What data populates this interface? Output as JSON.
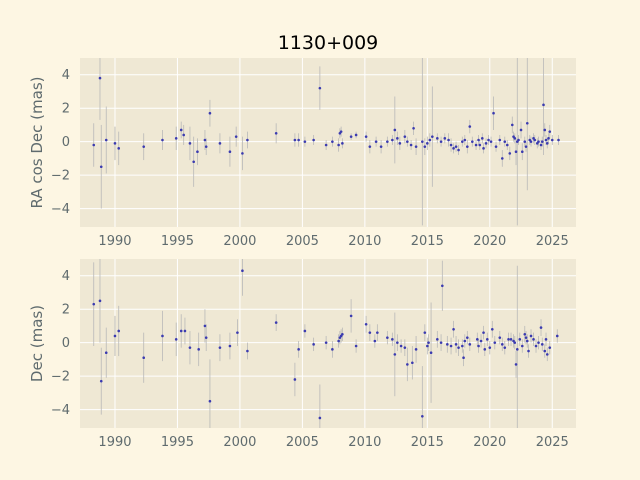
{
  "chart_data": {
    "title": "1130+009",
    "type": "scatter",
    "colors": {
      "background": "#fdf6e3",
      "panel": "#efe8d4",
      "grid": "#ffffff",
      "marker": "#3b3bb0",
      "errorbar": "#b8b8b8",
      "tick_text": "#5f6b6e"
    },
    "grid": true,
    "xlim": [
      1987.2,
      2026.9
    ],
    "xticks": [
      1990,
      1995,
      2000,
      2005,
      2010,
      2015,
      2020,
      2025
    ],
    "panels": [
      {
        "ylabel": "RA cos Dec (mas)",
        "ylim": [
          -5.1,
          5.0
        ],
        "yticks": [
          -4,
          -2,
          0,
          2,
          4
        ],
        "points": [
          [
            1988.3,
            -0.2,
            1.3
          ],
          [
            1988.8,
            3.8,
            2.5
          ],
          [
            1988.9,
            -1.5,
            2.5
          ],
          [
            1989.3,
            0.1,
            2.0
          ],
          [
            1990.0,
            -0.1,
            1.0
          ],
          [
            1990.3,
            -0.4,
            1.0
          ],
          [
            1992.3,
            -0.3,
            0.8
          ],
          [
            1993.8,
            0.1,
            0.6
          ],
          [
            1994.9,
            0.2,
            0.7
          ],
          [
            1995.3,
            0.7,
            0.5
          ],
          [
            1995.5,
            0.4,
            0.6
          ],
          [
            1996.0,
            -0.1,
            1.0
          ],
          [
            1996.3,
            -1.2,
            1.5
          ],
          [
            1996.6,
            -0.6,
            0.8
          ],
          [
            1997.2,
            0.1,
            0.6
          ],
          [
            1997.3,
            -0.3,
            0.5
          ],
          [
            1997.6,
            1.7,
            0.8
          ],
          [
            1998.4,
            -0.1,
            0.6
          ],
          [
            1999.2,
            -0.6,
            0.9
          ],
          [
            1999.7,
            0.3,
            0.6
          ],
          [
            2000.2,
            -0.7,
            1.0
          ],
          [
            2000.6,
            0.1,
            0.5
          ],
          [
            2002.9,
            0.5,
            0.6
          ],
          [
            2004.4,
            0.1,
            0.4
          ],
          [
            2004.7,
            0.1,
            0.4
          ],
          [
            2005.2,
            0.0,
            0.3
          ],
          [
            2005.9,
            0.1,
            0.3
          ],
          [
            2006.4,
            3.2,
            1.3
          ],
          [
            2006.9,
            -0.2,
            0.3
          ],
          [
            2007.4,
            0.0,
            0.3
          ],
          [
            2007.9,
            -0.2,
            0.4
          ],
          [
            2008.0,
            0.5,
            0.3
          ],
          [
            2008.1,
            0.6,
            0.3
          ],
          [
            2008.2,
            -0.1,
            0.3
          ],
          [
            2008.9,
            0.3,
            0.2
          ],
          [
            2009.3,
            0.4,
            0.2
          ],
          [
            2010.1,
            0.3,
            0.3
          ],
          [
            2010.4,
            -0.3,
            0.4
          ],
          [
            2010.9,
            0.0,
            0.3
          ],
          [
            2011.3,
            -0.3,
            0.4
          ],
          [
            2011.8,
            0.0,
            0.3
          ],
          [
            2012.2,
            0.1,
            0.3
          ],
          [
            2012.4,
            0.7,
            2.0
          ],
          [
            2012.6,
            0.2,
            0.4
          ],
          [
            2012.8,
            -0.1,
            0.4
          ],
          [
            2013.2,
            0.3,
            0.4
          ],
          [
            2013.4,
            0.0,
            0.3
          ],
          [
            2013.7,
            -0.2,
            0.3
          ],
          [
            2013.9,
            0.8,
            0.4
          ],
          [
            2014.1,
            -0.3,
            0.5
          ],
          [
            2014.6,
            0.0,
            5.0
          ],
          [
            2014.8,
            -0.3,
            0.5
          ],
          [
            2015.0,
            -0.1,
            0.4
          ],
          [
            2015.2,
            0.1,
            0.4
          ],
          [
            2015.4,
            0.3,
            3.0
          ],
          [
            2015.8,
            0.2,
            0.3
          ],
          [
            2016.1,
            0.0,
            0.3
          ],
          [
            2016.4,
            0.2,
            0.3
          ],
          [
            2016.7,
            0.1,
            0.4
          ],
          [
            2016.9,
            -0.2,
            0.4
          ],
          [
            2017.1,
            -0.4,
            0.3
          ],
          [
            2017.3,
            -0.3,
            0.3
          ],
          [
            2017.5,
            -0.5,
            0.3
          ],
          [
            2017.8,
            0.0,
            0.3
          ],
          [
            2018.0,
            0.1,
            0.3
          ],
          [
            2018.2,
            -0.3,
            0.4
          ],
          [
            2018.4,
            0.9,
            0.4
          ],
          [
            2018.6,
            0.0,
            0.3
          ],
          [
            2018.9,
            -0.2,
            0.3
          ],
          [
            2019.1,
            0.1,
            0.3
          ],
          [
            2019.2,
            -0.2,
            0.3
          ],
          [
            2019.4,
            0.2,
            0.3
          ],
          [
            2019.5,
            -0.4,
            0.3
          ],
          [
            2019.7,
            -0.1,
            0.3
          ],
          [
            2019.9,
            0.1,
            0.3
          ],
          [
            2020.1,
            0.0,
            0.3
          ],
          [
            2020.3,
            1.7,
            1.0
          ],
          [
            2020.5,
            -0.3,
            0.3
          ],
          [
            2020.8,
            0.1,
            0.3
          ],
          [
            2021.0,
            -1.0,
            0.5
          ],
          [
            2021.2,
            0.0,
            0.3
          ],
          [
            2021.4,
            -0.2,
            0.3
          ],
          [
            2021.6,
            -0.7,
            0.4
          ],
          [
            2021.8,
            1.0,
            0.5
          ],
          [
            2021.9,
            0.3,
            0.3
          ],
          [
            2022.0,
            0.2,
            0.3
          ],
          [
            2022.1,
            -0.6,
            0.8
          ],
          [
            2022.2,
            0.0,
            5.0
          ],
          [
            2022.3,
            0.1,
            0.3
          ],
          [
            2022.5,
            0.7,
            0.5
          ],
          [
            2022.6,
            -0.6,
            0.5
          ],
          [
            2022.8,
            0.0,
            0.3
          ],
          [
            2022.9,
            -0.3,
            0.3
          ],
          [
            2023.0,
            1.1,
            4.0
          ],
          [
            2023.2,
            0.1,
            0.3
          ],
          [
            2023.3,
            0.0,
            0.3
          ],
          [
            2023.5,
            0.2,
            0.3
          ],
          [
            2023.6,
            0.1,
            0.3
          ],
          [
            2023.8,
            -0.1,
            0.3
          ],
          [
            2023.9,
            0.0,
            0.3
          ],
          [
            2024.1,
            -0.2,
            0.3
          ],
          [
            2024.2,
            0.0,
            0.3
          ],
          [
            2024.3,
            2.2,
            3.0
          ],
          [
            2024.4,
            0.7,
            0.4
          ],
          [
            2024.5,
            0.1,
            0.3
          ],
          [
            2024.6,
            -0.1,
            0.3
          ],
          [
            2024.7,
            0.2,
            0.3
          ],
          [
            2024.8,
            0.6,
            0.4
          ],
          [
            2025.0,
            0.1,
            0.3
          ],
          [
            2025.5,
            0.1,
            0.3
          ]
        ]
      },
      {
        "ylabel": "Dec (mas)",
        "ylim": [
          -5.1,
          5.0
        ],
        "yticks": [
          -4,
          -2,
          0,
          2,
          4
        ],
        "points": [
          [
            1988.3,
            2.3,
            2.5
          ],
          [
            1988.8,
            2.5,
            2.5
          ],
          [
            1988.9,
            -2.3,
            2.0
          ],
          [
            1989.3,
            -0.6,
            1.5
          ],
          [
            1990.0,
            0.4,
            1.2
          ],
          [
            1990.3,
            0.7,
            1.5
          ],
          [
            1992.3,
            -0.9,
            1.5
          ],
          [
            1993.8,
            0.4,
            1.5
          ],
          [
            1994.9,
            0.2,
            1.0
          ],
          [
            1995.3,
            0.7,
            1.0
          ],
          [
            1995.6,
            0.7,
            0.8
          ],
          [
            1996.0,
            -0.3,
            1.0
          ],
          [
            1996.7,
            -0.4,
            1.0
          ],
          [
            1997.2,
            1.0,
            1.0
          ],
          [
            1997.3,
            0.3,
            0.8
          ],
          [
            1997.6,
            -3.5,
            2.5
          ],
          [
            1998.4,
            -0.3,
            0.8
          ],
          [
            1999.2,
            -0.2,
            0.8
          ],
          [
            1999.8,
            0.6,
            0.8
          ],
          [
            2000.2,
            4.3,
            1.5
          ],
          [
            2000.6,
            -0.5,
            0.5
          ],
          [
            2002.9,
            1.2,
            0.5
          ],
          [
            2004.4,
            -2.2,
            1.0
          ],
          [
            2004.7,
            -0.4,
            0.5
          ],
          [
            2005.2,
            0.7,
            0.4
          ],
          [
            2005.9,
            -0.1,
            0.4
          ],
          [
            2006.4,
            -4.5,
            2.0
          ],
          [
            2006.9,
            0.0,
            0.4
          ],
          [
            2007.4,
            -0.4,
            0.5
          ],
          [
            2007.9,
            0.1,
            0.4
          ],
          [
            2008.0,
            0.3,
            0.4
          ],
          [
            2008.1,
            0.4,
            0.4
          ],
          [
            2008.2,
            0.5,
            0.4
          ],
          [
            2008.9,
            1.6,
            1.0
          ],
          [
            2009.3,
            -0.2,
            0.4
          ],
          [
            2010.1,
            1.1,
            0.5
          ],
          [
            2010.4,
            0.6,
            0.5
          ],
          [
            2010.8,
            0.1,
            0.4
          ],
          [
            2011.0,
            0.6,
            0.5
          ],
          [
            2011.8,
            0.3,
            0.4
          ],
          [
            2012.2,
            0.2,
            0.4
          ],
          [
            2012.4,
            -0.7,
            2.5
          ],
          [
            2012.6,
            0.0,
            0.5
          ],
          [
            2012.9,
            -0.2,
            0.4
          ],
          [
            2013.2,
            -0.3,
            0.5
          ],
          [
            2013.4,
            -1.3,
            1.0
          ],
          [
            2013.8,
            -1.2,
            1.0
          ],
          [
            2014.1,
            -0.4,
            0.8
          ],
          [
            2014.6,
            -4.4,
            3.0
          ],
          [
            2014.8,
            0.6,
            0.5
          ],
          [
            2015.0,
            -0.2,
            0.5
          ],
          [
            2015.1,
            0.0,
            0.5
          ],
          [
            2015.3,
            -0.6,
            3.0
          ],
          [
            2015.8,
            0.2,
            0.5
          ],
          [
            2016.1,
            0.0,
            0.5
          ],
          [
            2016.2,
            3.4,
            1.5
          ],
          [
            2016.6,
            -0.1,
            0.5
          ],
          [
            2016.9,
            -0.2,
            0.5
          ],
          [
            2017.1,
            0.8,
            0.5
          ],
          [
            2017.3,
            -0.1,
            0.5
          ],
          [
            2017.5,
            -0.3,
            0.5
          ],
          [
            2017.8,
            -0.2,
            0.4
          ],
          [
            2017.9,
            -0.9,
            0.5
          ],
          [
            2018.0,
            0.1,
            0.4
          ],
          [
            2018.2,
            0.3,
            0.4
          ],
          [
            2018.4,
            -0.1,
            0.4
          ],
          [
            2019.0,
            0.2,
            0.4
          ],
          [
            2019.1,
            -0.2,
            0.4
          ],
          [
            2019.3,
            0.1,
            0.4
          ],
          [
            2019.5,
            0.6,
            0.4
          ],
          [
            2019.6,
            -0.4,
            0.4
          ],
          [
            2019.8,
            0.2,
            0.4
          ],
          [
            2020.0,
            -0.3,
            0.4
          ],
          [
            2020.2,
            0.8,
            0.5
          ],
          [
            2020.4,
            0.0,
            0.4
          ],
          [
            2020.8,
            0.3,
            0.4
          ],
          [
            2021.0,
            -0.1,
            0.4
          ],
          [
            2021.2,
            -0.3,
            0.4
          ],
          [
            2021.5,
            0.2,
            0.4
          ],
          [
            2021.7,
            0.2,
            0.4
          ],
          [
            2021.9,
            0.1,
            0.4
          ],
          [
            2022.0,
            0.0,
            0.4
          ],
          [
            2022.1,
            -1.3,
            0.8
          ],
          [
            2022.2,
            -0.4,
            5.0
          ],
          [
            2022.4,
            0.2,
            0.4
          ],
          [
            2022.6,
            -0.2,
            0.4
          ],
          [
            2022.8,
            0.5,
            0.5
          ],
          [
            2022.9,
            0.3,
            0.4
          ],
          [
            2023.0,
            0.1,
            0.4
          ],
          [
            2023.1,
            -0.5,
            0.4
          ],
          [
            2023.3,
            0.4,
            0.4
          ],
          [
            2023.5,
            0.2,
            0.4
          ],
          [
            2023.7,
            -0.2,
            0.4
          ],
          [
            2023.9,
            0.0,
            0.4
          ],
          [
            2024.1,
            0.9,
            0.5
          ],
          [
            2024.2,
            -0.1,
            0.4
          ],
          [
            2024.4,
            -0.5,
            0.4
          ],
          [
            2024.5,
            0.2,
            0.4
          ],
          [
            2024.6,
            -0.7,
            0.4
          ],
          [
            2024.8,
            -0.3,
            0.4
          ],
          [
            2025.4,
            0.4,
            0.4
          ]
        ]
      }
    ]
  }
}
